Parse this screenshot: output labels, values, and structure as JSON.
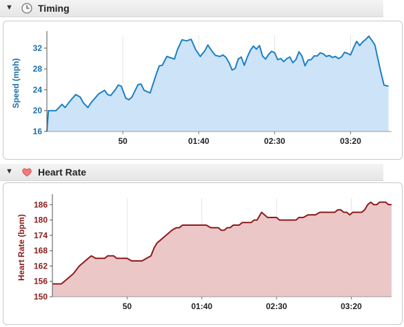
{
  "sections": [
    {
      "title": "Timing",
      "icon": "clock-icon",
      "toggle": "▼"
    },
    {
      "title": "Heart Rate",
      "icon": "heart-icon",
      "toggle": "▼"
    }
  ],
  "chart_data": [
    {
      "type": "area",
      "title": "",
      "ylabel": "Speed (mph)",
      "xlabel": "",
      "x_tick_labels": [
        "50",
        "01:40",
        "02:30",
        "03:20"
      ],
      "x_tick_positions": [
        50,
        100,
        150,
        200
      ],
      "y_ticks": [
        16,
        20,
        24,
        28,
        32
      ],
      "ylim": [
        16,
        34.5
      ],
      "xlim": [
        0,
        227
      ],
      "line_color": "#1b7fc4",
      "fill_color": "#cde3f8",
      "series": [
        {
          "name": "",
          "x": [
            0,
            1,
            6,
            10,
            12,
            16,
            19,
            22,
            24,
            27,
            29,
            32,
            34,
            38,
            40,
            42,
            45,
            47,
            49,
            52,
            54,
            56,
            60,
            62,
            64,
            68,
            72,
            74,
            76,
            79,
            81,
            84,
            86,
            89,
            92,
            95,
            98,
            101,
            104,
            106,
            109,
            111,
            114,
            116,
            118,
            120,
            122,
            124,
            126,
            128,
            130,
            132,
            134,
            136,
            138,
            140,
            142,
            144,
            146,
            148,
            150,
            152,
            154,
            156,
            158,
            160,
            162,
            164,
            166,
            168,
            170,
            172,
            174,
            176,
            178,
            180,
            182,
            184,
            186,
            188,
            190,
            192,
            194,
            196,
            198,
            200,
            202,
            204,
            206,
            208,
            210,
            212,
            214,
            216,
            218,
            220,
            222,
            225
          ],
          "y": [
            16,
            20,
            20,
            21.2,
            20.6,
            22.1,
            23.1,
            22.6,
            21.5,
            20.6,
            21.5,
            22.5,
            23.2,
            23.9,
            23.1,
            22.9,
            24,
            24.9,
            24.7,
            22.4,
            22.1,
            22.6,
            25,
            25.1,
            23.9,
            23.4,
            27,
            28.6,
            28.7,
            30.4,
            30.2,
            29.9,
            31.7,
            33.6,
            33.4,
            33.7,
            31.7,
            30.4,
            31.5,
            32.6,
            31.3,
            30.6,
            30.4,
            30.7,
            30.2,
            29.2,
            27.8,
            28.1,
            29.9,
            30.3,
            28.7,
            30.3,
            31.6,
            32.4,
            31.8,
            32.5,
            30.5,
            29.9,
            30.8,
            31.4,
            31.1,
            29.8,
            30,
            29.4,
            30,
            30.3,
            29.2,
            29.8,
            31.3,
            30.5,
            28.6,
            29.7,
            29.8,
            30.5,
            30.5,
            31.1,
            30.9,
            30.4,
            30.6,
            30.2,
            30.4,
            30,
            30.3,
            31.2,
            31,
            30.7,
            32.1,
            33.3,
            32.5,
            33.2,
            33.7,
            34.3,
            33.5,
            32.6,
            29.9,
            27.3,
            24.9,
            24.7
          ]
        }
      ]
    },
    {
      "type": "area",
      "title": "",
      "ylabel": "Heart Rate (bpm)",
      "xlabel": "",
      "x_tick_labels": [
        "50",
        "01:40",
        "02:30",
        "03:20"
      ],
      "x_tick_positions": [
        50,
        100,
        150,
        200
      ],
      "y_ticks": [
        150,
        156,
        162,
        168,
        174,
        180,
        186
      ],
      "ylim": [
        150,
        188.5
      ],
      "xlim": [
        0,
        227
      ],
      "line_color": "#8c1a1a",
      "fill_color": "#ecc7c8",
      "series": [
        {
          "name": "",
          "x": [
            0,
            6,
            10,
            14,
            18,
            24,
            26,
            29,
            31,
            33,
            35,
            37,
            41,
            43,
            45,
            47,
            50,
            53,
            56,
            60,
            63,
            66,
            68,
            70,
            72,
            74,
            76,
            78,
            80,
            83,
            85,
            87,
            90,
            92,
            95,
            97,
            99,
            101,
            103,
            106,
            109,
            111,
            113,
            115,
            117,
            119,
            121,
            123,
            125,
            127,
            129,
            131,
            133,
            135,
            137,
            140,
            142,
            144,
            146,
            148,
            150,
            152,
            154,
            156,
            158,
            161,
            163,
            165,
            168,
            171,
            173,
            176,
            179,
            181,
            183,
            185,
            187,
            189,
            191,
            193,
            195,
            197,
            199,
            201,
            203,
            205,
            207,
            209,
            211,
            213,
            215,
            217,
            219,
            221,
            223,
            225,
            227
          ],
          "y": [
            155,
            155,
            157,
            159,
            162,
            165,
            166,
            165,
            165,
            165,
            165,
            166,
            166,
            165,
            165,
            165,
            165,
            164,
            164,
            164,
            165,
            166,
            169,
            171,
            172,
            173,
            174,
            175,
            176,
            177,
            177,
            178,
            178,
            178,
            178,
            178,
            178,
            178,
            178,
            177,
            177,
            177,
            176,
            176,
            177,
            177,
            178,
            178,
            178,
            179,
            179,
            179,
            179,
            180,
            180,
            183,
            182,
            181,
            181,
            181,
            181,
            180,
            180,
            180,
            180,
            180,
            180,
            181,
            181,
            182,
            182,
            182,
            183,
            183,
            183,
            183,
            183,
            183,
            184,
            184,
            183,
            183,
            182,
            183,
            183,
            183,
            183,
            184,
            186,
            187,
            186,
            186,
            187,
            187,
            187,
            186,
            186
          ]
        }
      ]
    }
  ]
}
